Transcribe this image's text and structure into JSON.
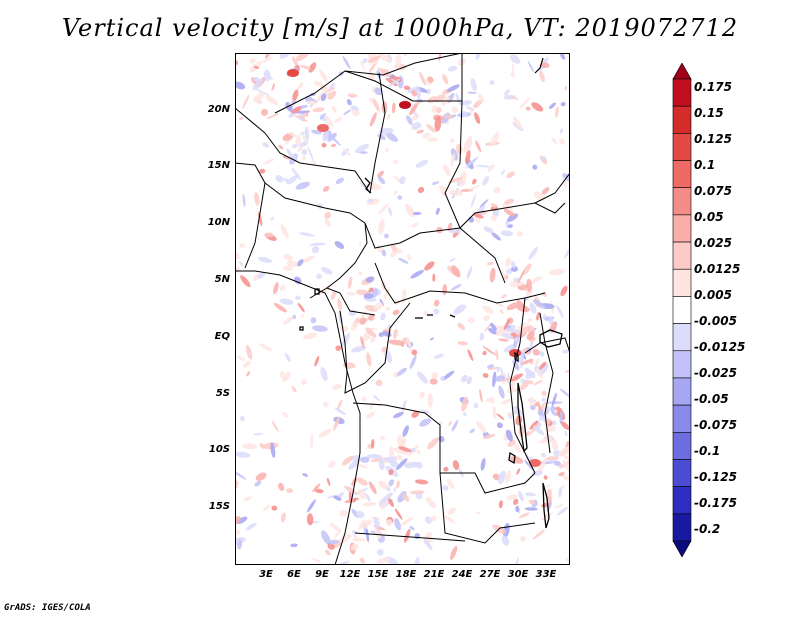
{
  "title": "Vertical velocity [m/s] at 1000hPa, VT: 2019072712",
  "lat_labels": [
    "20N",
    "15N",
    "10N",
    "5N",
    "EQ",
    "5S",
    "10S",
    "15S"
  ],
  "lon_labels": [
    "3E",
    "6E",
    "9E",
    "12E",
    "15E",
    "18E",
    "21E",
    "24E",
    "27E",
    "30E",
    "33E"
  ],
  "colorbar": {
    "labels": [
      "0.175",
      "0.15",
      "0.125",
      "0.1",
      "0.075",
      "0.05",
      "0.025",
      "0.0125",
      "0.005",
      "-0.005",
      "-0.0125",
      "-0.025",
      "-0.05",
      "-0.075",
      "-0.1",
      "-0.125",
      "-0.175",
      "-0.2"
    ],
    "colors": [
      "#a1001a",
      "#c01020",
      "#d42b2b",
      "#e34a45",
      "#ee6b65",
      "#f48d89",
      "#f9aeaa",
      "#fccbc7",
      "#fee5e2",
      "#ffffff",
      "#dcdcfc",
      "#c2c2f8",
      "#a6a6f2",
      "#8a8aea",
      "#6d6de0",
      "#4c4cd2",
      "#2e2ec0",
      "#1a1aa0",
      "#0c0c80"
    ]
  },
  "credit": "GrADS: IGES/COLA"
}
